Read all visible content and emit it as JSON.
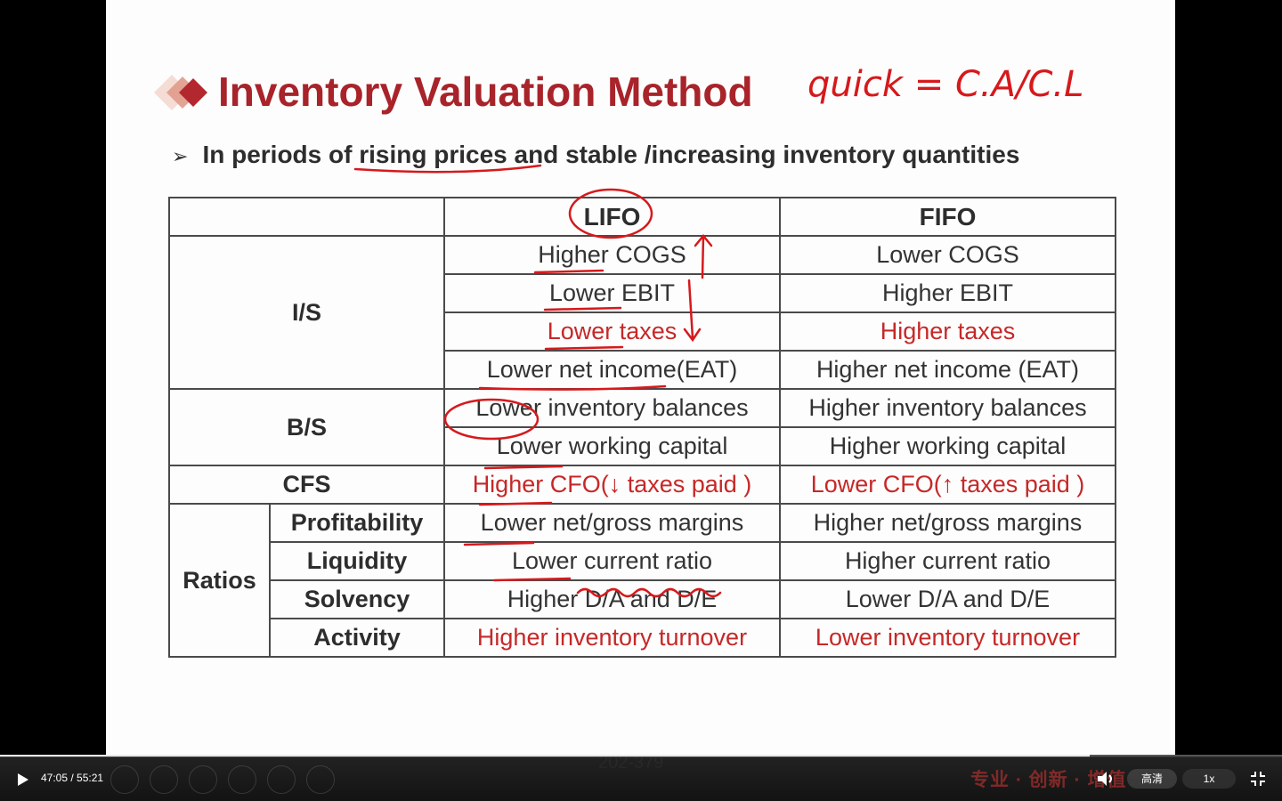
{
  "slide": {
    "title": "Inventory Valuation Method",
    "bullet": "➢",
    "subtitle": "In periods of rising prices and stable /increasing inventory quantities",
    "handwriting": "quick = C.A/C.L",
    "page_number": "202-379"
  },
  "table": {
    "header": [
      "",
      "LIFO",
      "FIFO"
    ],
    "groups": {
      "is": "I/S",
      "bs": "B/S",
      "cfs": "CFS",
      "ratios": "Ratios"
    },
    "ratio_names": [
      "Profitability",
      "Liquidity",
      "Solvency",
      "Activity"
    ],
    "lifo": [
      "Higher COGS",
      "Lower EBIT",
      "Lower taxes",
      "Lower net income(EAT)",
      "Lower inventory balances",
      "Lower working capital",
      "Higher CFO(↓ taxes paid )",
      "Lower net/gross margins",
      "Lower current ratio",
      "Higher D/A and D/E",
      "Higher inventory turnover"
    ],
    "fifo": [
      "Lower COGS",
      "Higher EBIT",
      "Higher taxes",
      "Higher net income (EAT)",
      "Higher inventory balances",
      "Higher working capital",
      "Lower CFO(↑ taxes paid )",
      "Higher net/gross margins",
      "Higher current ratio",
      "Lower D/A and D/E",
      "Lower inventory turnover"
    ]
  },
  "player": {
    "time": "47:05 / 55:21",
    "progress": 0.85,
    "watermark": "专业 · 创新 · 增值",
    "quality_label": "高清",
    "speed_label": "1x",
    "play_icon": "play-icon",
    "volume_icon": "volume-icon",
    "fullscreen_icon": "exit-fullscreen-icon"
  },
  "colors": {
    "title": "#a8232a",
    "emphasis_red": "#c62828",
    "ink": "#d6191c"
  }
}
